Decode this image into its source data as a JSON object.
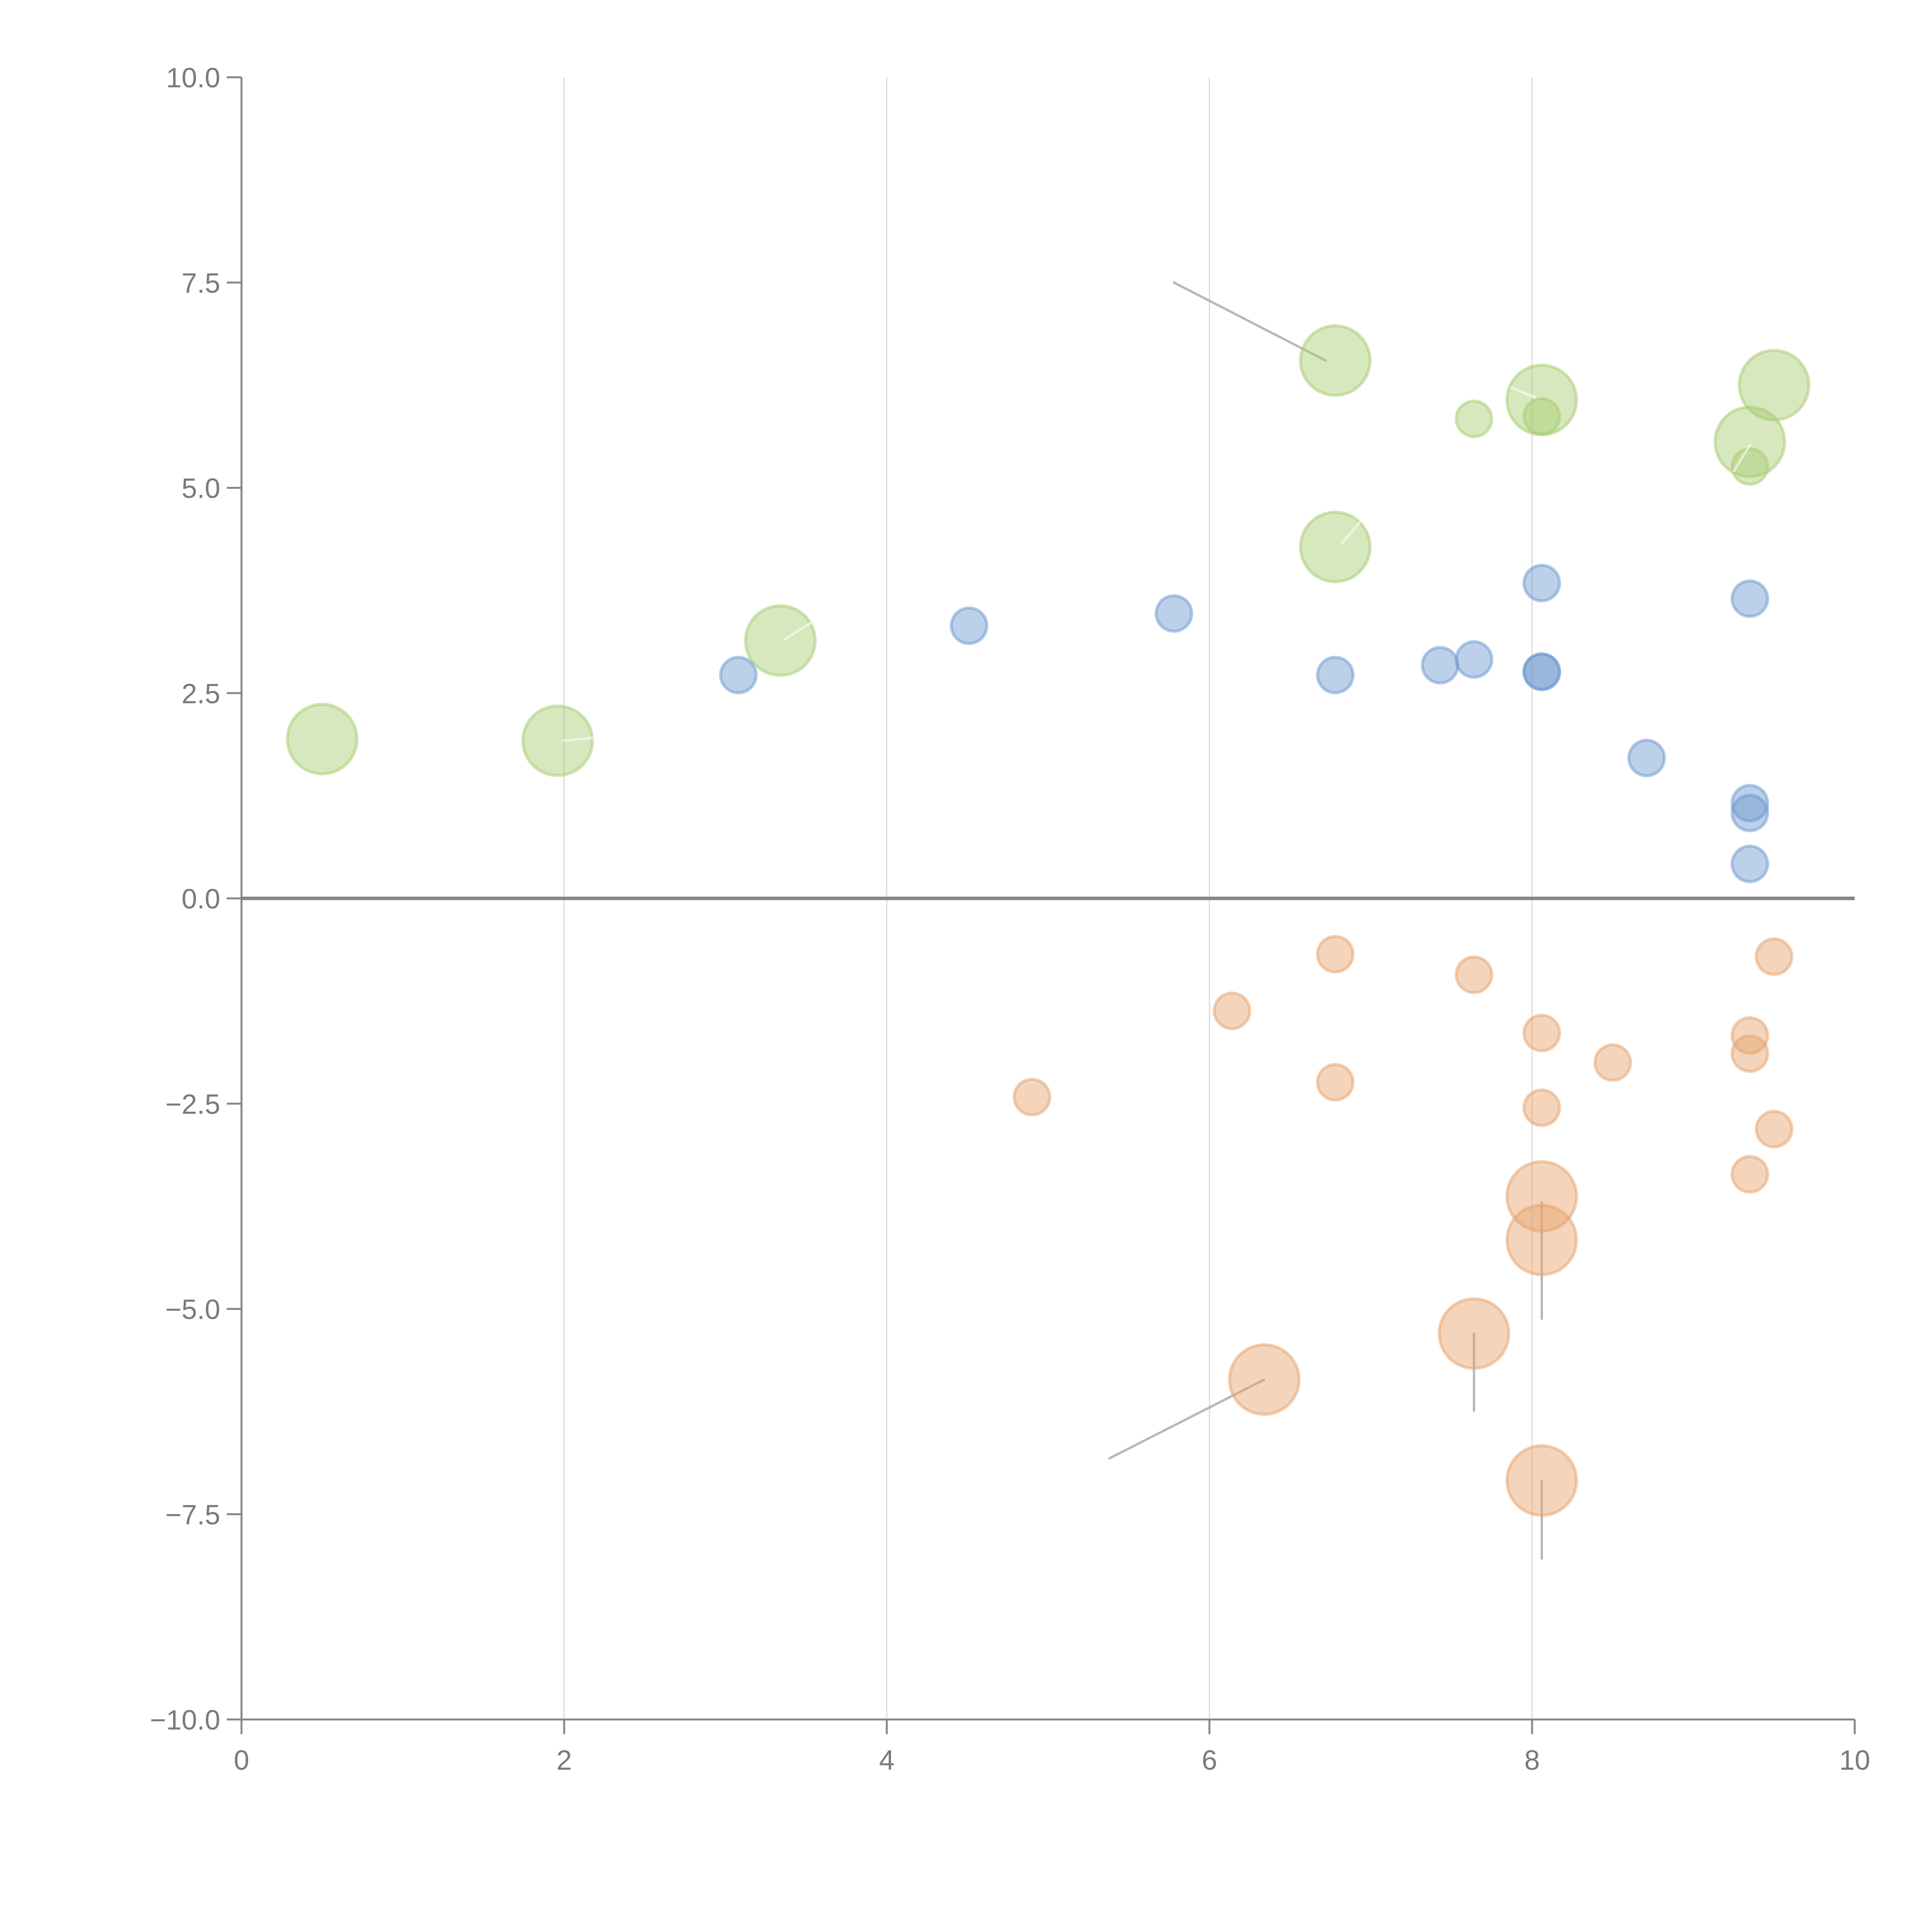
{
  "chart_data": {
    "type": "scatter",
    "title": "",
    "xlabel": "",
    "ylabel": "",
    "xlim": [
      0,
      10
    ],
    "ylim": [
      -10,
      10
    ],
    "x_ticks": [
      "0",
      "2",
      "4",
      "6",
      "8",
      "10"
    ],
    "y_ticks": [
      "10.0",
      "7.5",
      "5.0",
      "2.5",
      "0.0",
      "−2.5",
      "−5.0",
      "−7.5",
      "−10.0"
    ],
    "x_tick_values": [
      0,
      2,
      4,
      6,
      8,
      10
    ],
    "y_tick_values": [
      10,
      7.5,
      5,
      2.5,
      0,
      -2.5,
      -5,
      -7.5,
      -10
    ],
    "grid": "vertical",
    "zero_line": true,
    "legend": "none",
    "series": [
      {
        "name": "green",
        "color": "#a6cc6f",
        "points": [
          {
            "x": 0.5,
            "y": 1.94,
            "size": "large"
          },
          {
            "x": 1.96,
            "y": 1.92,
            "size": "large"
          },
          {
            "x": 3.34,
            "y": 3.14,
            "size": "large"
          },
          {
            "x": 6.78,
            "y": 6.55,
            "size": "large"
          },
          {
            "x": 6.78,
            "y": 4.28,
            "size": "large"
          },
          {
            "x": 8.06,
            "y": 6.07,
            "size": "large"
          },
          {
            "x": 9.5,
            "y": 6.25,
            "size": "large"
          },
          {
            "x": 9.35,
            "y": 5.56,
            "size": "large"
          },
          {
            "x": 7.64,
            "y": 5.84,
            "size": "small"
          },
          {
            "x": 8.06,
            "y": 5.87,
            "size": "small"
          },
          {
            "x": 9.35,
            "y": 5.26,
            "size": "small"
          }
        ]
      },
      {
        "name": "blue",
        "color": "#6d97cf",
        "points": [
          {
            "x": 3.08,
            "y": 2.72,
            "size": "small"
          },
          {
            "x": 4.51,
            "y": 3.32,
            "size": "small"
          },
          {
            "x": 5.78,
            "y": 3.47,
            "size": "small"
          },
          {
            "x": 6.78,
            "y": 2.72,
            "size": "small"
          },
          {
            "x": 7.43,
            "y": 2.84,
            "size": "small"
          },
          {
            "x": 7.64,
            "y": 2.91,
            "size": "small"
          },
          {
            "x": 8.06,
            "y": 2.76,
            "size": "small"
          },
          {
            "x": 8.06,
            "y": 2.76,
            "size": "small"
          },
          {
            "x": 8.06,
            "y": 3.84,
            "size": "small"
          },
          {
            "x": 8.71,
            "y": 1.71,
            "size": "small"
          },
          {
            "x": 9.35,
            "y": 3.65,
            "size": "small"
          },
          {
            "x": 9.35,
            "y": 1.16,
            "size": "small"
          },
          {
            "x": 9.35,
            "y": 1.04,
            "size": "small"
          },
          {
            "x": 9.35,
            "y": 0.42,
            "size": "small"
          }
        ]
      },
      {
        "name": "orange",
        "color": "#e6a26b",
        "points": [
          {
            "x": 4.9,
            "y": -2.42,
            "size": "small"
          },
          {
            "x": 6.14,
            "y": -1.37,
            "size": "small"
          },
          {
            "x": 6.78,
            "y": -0.68,
            "size": "small"
          },
          {
            "x": 6.78,
            "y": -2.24,
            "size": "small"
          },
          {
            "x": 7.64,
            "y": -0.93,
            "size": "small"
          },
          {
            "x": 8.06,
            "y": -1.64,
            "size": "small"
          },
          {
            "x": 8.06,
            "y": -2.55,
            "size": "small"
          },
          {
            "x": 8.5,
            "y": -2.0,
            "size": "small"
          },
          {
            "x": 9.35,
            "y": -1.67,
            "size": "small"
          },
          {
            "x": 9.35,
            "y": -1.89,
            "size": "small"
          },
          {
            "x": 9.5,
            "y": -0.71,
            "size": "small"
          },
          {
            "x": 9.5,
            "y": -2.81,
            "size": "small"
          },
          {
            "x": 9.35,
            "y": -3.36,
            "size": "small"
          },
          {
            "x": 8.06,
            "y": -3.63,
            "size": "large"
          },
          {
            "x": 8.06,
            "y": -4.16,
            "size": "large"
          },
          {
            "x": 7.64,
            "y": -5.3,
            "size": "large"
          },
          {
            "x": 6.34,
            "y": -5.86,
            "size": "large"
          },
          {
            "x": 8.06,
            "y": -7.09,
            "size": "large"
          }
        ]
      }
    ],
    "leaders": [
      {
        "from": [
          6.72,
          6.55
        ],
        "to": [
          5.78,
          7.5
        ],
        "style": "grey"
      },
      {
        "from": [
          6.34,
          -5.86
        ],
        "to": [
          5.38,
          -6.82
        ],
        "style": "grey"
      },
      {
        "from": [
          7.64,
          -5.3
        ],
        "to": [
          7.64,
          -6.24
        ],
        "style": "grey"
      },
      {
        "from": [
          8.06,
          -3.7
        ],
        "to": [
          8.06,
          -5.12
        ],
        "style": "grey"
      },
      {
        "from": [
          8.06,
          -7.09
        ],
        "to": [
          8.06,
          -8.04
        ],
        "style": "grey"
      },
      {
        "from": [
          2.0,
          1.92
        ],
        "to": [
          2.2,
          1.96
        ],
        "style": "light"
      },
      {
        "from": [
          3.37,
          3.16
        ],
        "to": [
          3.55,
          3.38
        ],
        "style": "light"
      },
      {
        "from": [
          6.82,
          4.32
        ],
        "to": [
          6.94,
          4.6
        ],
        "style": "light"
      },
      {
        "from": [
          8.02,
          6.1
        ],
        "to": [
          7.87,
          6.22
        ],
        "style": "light"
      },
      {
        "from": [
          9.35,
          5.52
        ],
        "to": [
          9.25,
          5.2
        ],
        "style": "light"
      }
    ]
  }
}
